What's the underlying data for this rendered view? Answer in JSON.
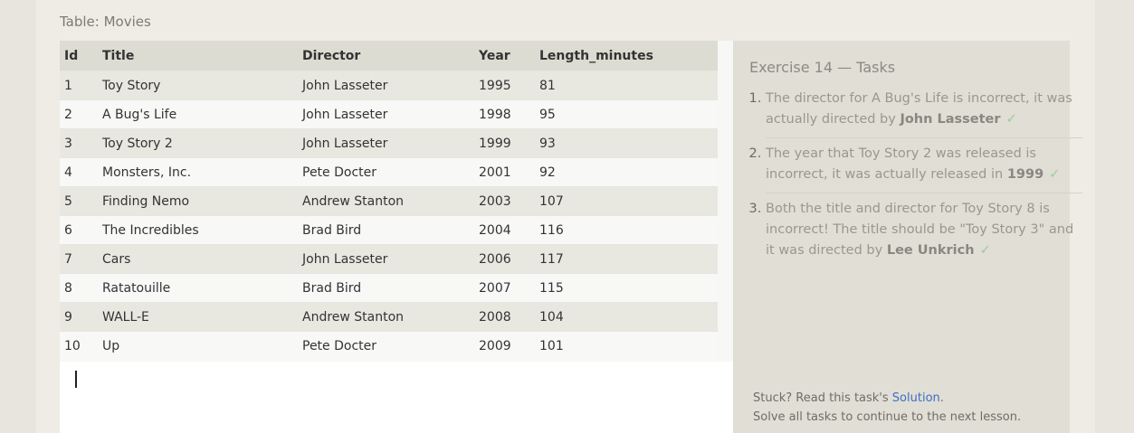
{
  "table_caption": "Table: Movies",
  "columns": [
    "Id",
    "Title",
    "Director",
    "Year",
    "Length_minutes"
  ],
  "rows": [
    [
      "1",
      "Toy Story",
      "John Lasseter",
      "1995",
      "81"
    ],
    [
      "2",
      "A Bug's Life",
      "John Lasseter",
      "1998",
      "95"
    ],
    [
      "3",
      "Toy Story 2",
      "John Lasseter",
      "1999",
      "93"
    ],
    [
      "4",
      "Monsters, Inc.",
      "Pete Docter",
      "2001",
      "92"
    ],
    [
      "5",
      "Finding Nemo",
      "Andrew Stanton",
      "2003",
      "107"
    ],
    [
      "6",
      "The Incredibles",
      "Brad Bird",
      "2004",
      "116"
    ],
    [
      "7",
      "Cars",
      "John Lasseter",
      "2006",
      "117"
    ],
    [
      "8",
      "Ratatouille",
      "Brad Bird",
      "2007",
      "115"
    ],
    [
      "9",
      "WALL-E",
      "Andrew Stanton",
      "2008",
      "104"
    ],
    [
      "10",
      "Up",
      "Pete Docter",
      "2009",
      "101"
    ]
  ],
  "tasks": {
    "title": "Exercise 14 — Tasks",
    "items": [
      {
        "text": "The director for A Bug's Life is incorrect, it was actually directed by ",
        "highlight": "John Lasseter",
        "check": "✓"
      },
      {
        "text": "The year that Toy Story 2 was released is incorrect, it was actually released in ",
        "highlight": "1999",
        "check": "✓"
      },
      {
        "text": "Both the title and director for Toy Story 8 is incorrect! The title should be \"Toy Story 3\" and it was directed by ",
        "highlight": "Lee Unkrich",
        "check": "✓"
      }
    ]
  },
  "footer": {
    "stuck_prefix": "Stuck? Read this task's ",
    "solution_link": "Solution",
    "stuck_suffix": ".",
    "continue_text": "Solve all tasks to continue to the next lesson."
  },
  "scroll_up_icon": "▲",
  "scroll_down_icon": "▼",
  "colors": {
    "header_bg": "#dcdcd2",
    "row_odd": "#e8e8e1",
    "row_even": "#f8f8f6",
    "check": "#9ccc9c",
    "link": "#3d6fc3"
  }
}
